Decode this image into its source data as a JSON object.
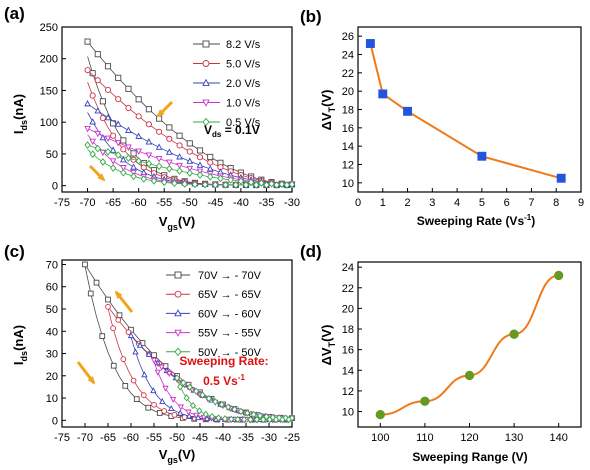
{
  "panels": [
    {
      "id": "a",
      "label": "(a)",
      "chart_data": {
        "type": "line",
        "xlabel_main": "V",
        "xlabel_sub": "gs",
        "xlabel_tail": "(V)",
        "ylabel_main": "I",
        "ylabel_sub": "ds",
        "ylabel_tail": "(nA)",
        "xlim": [
          -75,
          -30
        ],
        "ylim": [
          -10,
          250
        ],
        "xticks": [
          -75,
          -70,
          -65,
          -60,
          -55,
          -50,
          -45,
          -40,
          -35,
          -30
        ],
        "yticks": [
          0,
          50,
          100,
          150,
          200,
          250
        ],
        "legend_placement": "top-right",
        "annotation_main": "V",
        "annotation_sub": "ds",
        "annotation_tail": " = 0.1V",
        "series": [
          {
            "name": "8.2 V/s",
            "color": "#4a4a4a",
            "marker": "square",
            "ystart": 225,
            "xknee": -30
          },
          {
            "name": "5.0 V/s",
            "color": "#cc3344",
            "marker": "circle",
            "ystart": 180,
            "xknee": -36
          },
          {
            "name": "2.0 V/s",
            "color": "#3344bb",
            "marker": "triangle",
            "ystart": 127,
            "xknee": -41
          },
          {
            "name": "1.0 V/s",
            "color": "#cc33cc",
            "marker": "triangle-down",
            "ystart": 88,
            "xknee": -46
          },
          {
            "name": "0.5 V/s",
            "color": "#33aa44",
            "marker": "diamond",
            "ystart": 62,
            "xknee": -50
          }
        ]
      }
    },
    {
      "id": "b",
      "label": "(b)",
      "chart_data": {
        "type": "line",
        "xlabel": "Sweeping Rate (Vs",
        "xlabel_sup": "-1",
        "xlabel_tail": ")",
        "ylabel_main": "ΔV",
        "ylabel_sub": "T",
        "ylabel_tail": "(V)",
        "xlim": [
          0,
          9
        ],
        "ylim": [
          9,
          27
        ],
        "xticks": [
          0,
          1,
          2,
          3,
          4,
          5,
          6,
          7,
          8,
          9
        ],
        "yticks": [
          10,
          12,
          14,
          16,
          18,
          20,
          22,
          24,
          26
        ],
        "color": "#f07a1a",
        "marker_color": "#2255dd",
        "marker": "square",
        "x": [
          0.5,
          1.0,
          2.0,
          5.0,
          8.2
        ],
        "y": [
          25.2,
          19.7,
          17.8,
          12.9,
          10.5
        ]
      }
    },
    {
      "id": "c",
      "label": "(c)",
      "chart_data": {
        "type": "line",
        "xlabel_main": "V",
        "xlabel_sub": "gs",
        "xlabel_tail": "(V)",
        "ylabel_main": "I",
        "ylabel_sub": "ds",
        "ylabel_tail": "(nA)",
        "xlim": [
          -75,
          -25
        ],
        "ylim": [
          -3,
          72
        ],
        "xticks": [
          -75,
          -70,
          -65,
          -60,
          -55,
          -50,
          -45,
          -40,
          -35,
          -30,
          -25
        ],
        "yticks": [
          0,
          10,
          20,
          30,
          40,
          50,
          60,
          70
        ],
        "legend_placement": "top-right",
        "annotation_line1": "Sweeping Rate:",
        "annotation_line2": "0.5 Vs",
        "annotation_sup": "-1",
        "annotation_color": "#dd1111",
        "series": [
          {
            "name_left": "70V",
            "name_right": "- 70V",
            "arrow": "→",
            "color": "#4a4a4a",
            "marker": "square",
            "xstart": -70,
            "ystart": 69
          },
          {
            "name_left": "65V",
            "name_right": "- 65V",
            "arrow": "→",
            "color": "#cc3344",
            "marker": "circle",
            "xstart": -65,
            "ystart": 50
          },
          {
            "name_left": "60V",
            "name_right": "- 60V",
            "arrow": "→",
            "color": "#3344bb",
            "marker": "triangle",
            "xstart": -60,
            "ystart": 37
          },
          {
            "name_left": "55V",
            "name_right": "- 55V",
            "arrow": "→",
            "color": "#cc33cc",
            "marker": "triangle-down",
            "xstart": -55,
            "ystart": 26
          },
          {
            "name_left": "50V",
            "name_right": "- 50V",
            "arrow": "→",
            "color": "#33aa44",
            "marker": "diamond",
            "xstart": -50,
            "ystart": 18
          }
        ]
      }
    },
    {
      "id": "d",
      "label": "(d)",
      "chart_data": {
        "type": "line",
        "xlabel": "Sweeping Range (V)",
        "ylabel_main": "ΔV",
        "ylabel_sub": "T",
        "ylabel_tail": "(V)",
        "xlim": [
          95,
          145
        ],
        "ylim": [
          8.5,
          24.5
        ],
        "xticks": [
          100,
          110,
          120,
          130,
          140
        ],
        "yticks": [
          10,
          12,
          14,
          16,
          18,
          20,
          22,
          24
        ],
        "color": "#f07a1a",
        "marker_color": "#669922",
        "marker": "circle",
        "x": [
          100,
          110,
          120,
          130,
          140
        ],
        "y": [
          9.7,
          11.0,
          13.5,
          17.5,
          23.2
        ]
      }
    }
  ],
  "colors": {
    "arrow": "#f2a51b",
    "axis": "#000000"
  }
}
